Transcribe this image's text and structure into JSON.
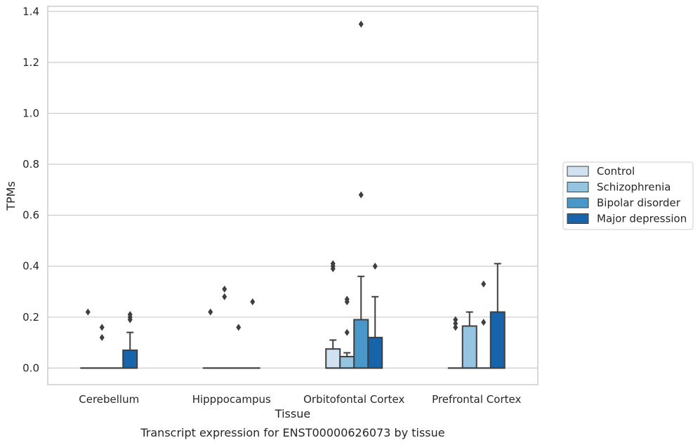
{
  "chart_data": {
    "type": "box",
    "title": "",
    "caption": "Transcript expression for ENST00000626073 by tissue",
    "xlabel": "Tissue",
    "ylabel": "TPMs",
    "ylim": [
      -0.065,
      1.42
    ],
    "yticks": [
      0.0,
      0.2,
      0.4,
      0.6,
      0.8,
      1.0,
      1.2,
      1.4
    ],
    "ytick_labels": [
      "0.0",
      "0.2",
      "0.4",
      "0.6",
      "0.8",
      "1.0",
      "1.2",
      "1.4"
    ],
    "grid": true,
    "legend_position": "right",
    "categories": [
      "Cerebellum",
      "Hipppocampus",
      "Orbitofontal Cortex",
      "Prefrontal Cortex"
    ],
    "series": [
      {
        "name": "Control",
        "color": "#d0e1f2",
        "boxes": [
          {
            "q1": 0,
            "median": 0,
            "q3": 0,
            "whisker_low": 0,
            "whisker_high": 0,
            "outliers": [
              0.22
            ]
          },
          {
            "q1": 0,
            "median": 0,
            "q3": 0,
            "whisker_low": 0,
            "whisker_high": 0,
            "outliers": [
              0.22
            ]
          },
          {
            "q1": 0,
            "median": 0,
            "q3": 0.075,
            "whisker_low": 0,
            "whisker_high": 0.11,
            "outliers": [
              0.39,
              0.4,
              0.41
            ]
          },
          {
            "q1": 0,
            "median": 0,
            "q3": 0,
            "whisker_low": 0,
            "whisker_high": 0,
            "outliers": [
              0.16,
              0.175,
              0.19
            ]
          }
        ]
      },
      {
        "name": "Schizophrenia",
        "color": "#94c4df",
        "boxes": [
          {
            "q1": 0,
            "median": 0,
            "q3": 0,
            "whisker_low": 0,
            "whisker_high": 0,
            "outliers": [
              0.12,
              0.16
            ]
          },
          {
            "q1": 0,
            "median": 0,
            "q3": 0,
            "whisker_low": 0,
            "whisker_high": 0,
            "outliers": [
              0.28,
              0.31
            ]
          },
          {
            "q1": 0,
            "median": 0,
            "q3": 0.045,
            "whisker_low": 0,
            "whisker_high": 0.06,
            "outliers": [
              0.14,
              0.26,
              0.27
            ]
          },
          {
            "q1": 0,
            "median": 0,
            "q3": 0.165,
            "whisker_low": 0,
            "whisker_high": 0.22,
            "outliers": []
          }
        ]
      },
      {
        "name": "Bipolar disorder",
        "color": "#4a98c9",
        "boxes": [
          {
            "q1": 0,
            "median": 0,
            "q3": 0,
            "whisker_low": 0,
            "whisker_high": 0,
            "outliers": []
          },
          {
            "q1": 0,
            "median": 0,
            "q3": 0,
            "whisker_low": 0,
            "whisker_high": 0,
            "outliers": [
              0.16
            ]
          },
          {
            "q1": 0,
            "median": 0,
            "q3": 0.19,
            "whisker_low": 0,
            "whisker_high": 0.36,
            "outliers": [
              0.68,
              1.35
            ]
          },
          {
            "q1": 0,
            "median": 0,
            "q3": 0,
            "whisker_low": 0,
            "whisker_high": 0,
            "outliers": [
              0.18,
              0.33
            ]
          }
        ]
      },
      {
        "name": "Major depression",
        "color": "#1764ab",
        "boxes": [
          {
            "q1": 0,
            "median": 0,
            "q3": 0.07,
            "whisker_low": 0,
            "whisker_high": 0.14,
            "outliers": [
              0.19,
              0.2,
              0.21
            ]
          },
          {
            "q1": 0,
            "median": 0,
            "q3": 0,
            "whisker_low": 0,
            "whisker_high": 0,
            "outliers": [
              0.26
            ]
          },
          {
            "q1": 0,
            "median": 0,
            "q3": 0.12,
            "whisker_low": 0,
            "whisker_high": 0.28,
            "outliers": [
              0.4
            ]
          },
          {
            "q1": 0,
            "median": 0,
            "q3": 0.22,
            "whisker_low": 0,
            "whisker_high": 0.41,
            "outliers": []
          }
        ]
      }
    ]
  }
}
